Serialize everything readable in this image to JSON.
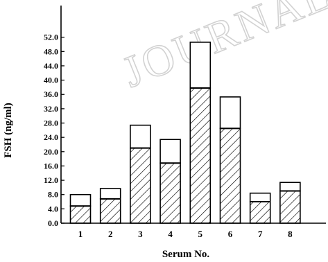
{
  "watermark": "JOURNAL",
  "chart_data": {
    "type": "bar",
    "stacked": true,
    "xlabel": "Serum No.",
    "ylabel": "FSH (ng/ml)",
    "ylim": [
      0,
      56
    ],
    "yticks": [
      "0.0",
      "4.0",
      "8.0",
      "12.0",
      "16.0",
      "20.0",
      "24.0",
      "28.0",
      "32.0",
      "36.0",
      "40.0",
      "44.0",
      "48.0",
      "52.0"
    ],
    "categories": [
      "1",
      "2",
      "3",
      "4",
      "5",
      "6",
      "7",
      "8"
    ],
    "grid": false,
    "legend": "none",
    "series": [
      {
        "pattern": "hatched",
        "values": [
          4.8,
          6.8,
          21.0,
          16.8,
          37.8,
          26.5,
          6.0,
          9.0
        ]
      },
      {
        "pattern": "open",
        "values": [
          3.2,
          2.9,
          6.4,
          6.6,
          12.8,
          8.8,
          2.4,
          2.4
        ]
      }
    ]
  }
}
